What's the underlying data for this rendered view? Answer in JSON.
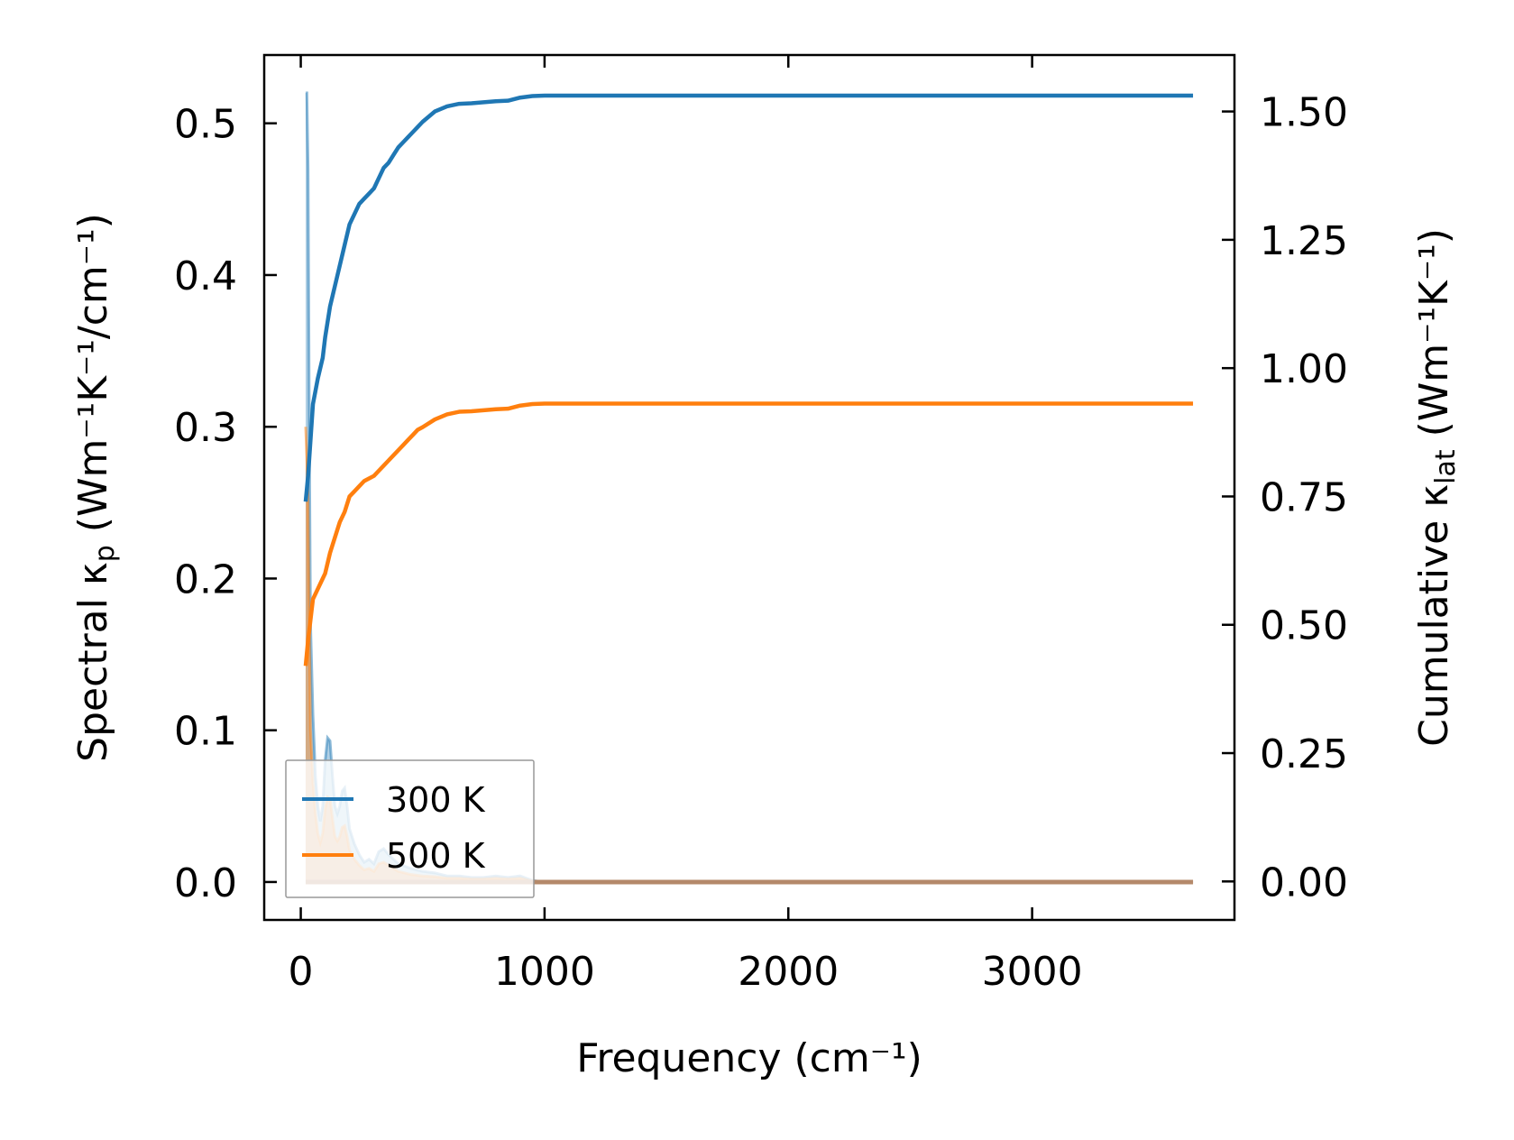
{
  "chart_data": {
    "type": "line",
    "xlabel": "Frequency (cm⁻¹)",
    "ylabel_left": {
      "prefix": "Spectral κ",
      "sub": "p",
      "suffix": " (Wm⁻¹K⁻¹/cm⁻¹)"
    },
    "ylabel_right": {
      "prefix": "Cumulative κ",
      "sub": "lat",
      "suffix": " (Wm⁻¹K⁻¹)"
    },
    "xlim": [
      -150,
      3830
    ],
    "ylim_left": [
      -0.025,
      0.545
    ],
    "ylim_right": [
      -0.075,
      1.61
    ],
    "x_ticks": [
      0,
      1000,
      2000,
      3000
    ],
    "x_tick_labels": [
      "0",
      "1000",
      "2000",
      "3000"
    ],
    "left_ticks": [
      0.0,
      0.1,
      0.2,
      0.3,
      0.4,
      0.5
    ],
    "left_tick_labels": [
      "0.0",
      "0.1",
      "0.2",
      "0.3",
      "0.4",
      "0.5"
    ],
    "right_ticks": [
      0.0,
      0.25,
      0.5,
      0.75,
      1.0,
      1.25,
      1.5
    ],
    "right_tick_labels": [
      "0.00",
      "0.25",
      "0.50",
      "0.75",
      "1.00",
      "1.25",
      "1.50"
    ],
    "legend_position": "lower-left",
    "colors": {
      "300 K": "#1f77b4",
      "500 K": "#ff7f0e"
    },
    "series": [
      {
        "name": "300 K",
        "axis": "right",
        "kind": "cumulative",
        "color": "#1f77b4",
        "x": [
          20,
          30,
          50,
          70,
          90,
          100,
          120,
          140,
          160,
          180,
          200,
          220,
          240,
          260,
          280,
          300,
          320,
          340,
          360,
          380,
          400,
          420,
          440,
          460,
          480,
          500,
          550,
          600,
          650,
          700,
          750,
          800,
          850,
          900,
          950,
          1000,
          1500,
          2000,
          2500,
          3000,
          3500,
          3660
        ],
        "y": [
          0.74,
          0.79,
          0.93,
          0.98,
          1.02,
          1.06,
          1.12,
          1.16,
          1.2,
          1.24,
          1.28,
          1.3,
          1.32,
          1.33,
          1.34,
          1.35,
          1.37,
          1.39,
          1.4,
          1.415,
          1.43,
          1.44,
          1.45,
          1.46,
          1.47,
          1.48,
          1.5,
          1.51,
          1.515,
          1.516,
          1.518,
          1.52,
          1.521,
          1.527,
          1.53,
          1.531,
          1.531,
          1.531,
          1.531,
          1.531,
          1.531,
          1.531
        ]
      },
      {
        "name": "500 K",
        "axis": "right",
        "kind": "cumulative",
        "color": "#ff7f0e",
        "x": [
          20,
          30,
          50,
          70,
          90,
          100,
          120,
          140,
          160,
          180,
          200,
          220,
          240,
          260,
          280,
          300,
          320,
          340,
          360,
          380,
          400,
          420,
          440,
          460,
          480,
          500,
          550,
          600,
          650,
          700,
          750,
          800,
          850,
          900,
          950,
          1000,
          1500,
          2000,
          2500,
          3000,
          3500,
          3660
        ],
        "y": [
          0.42,
          0.47,
          0.55,
          0.57,
          0.59,
          0.6,
          0.64,
          0.67,
          0.7,
          0.72,
          0.75,
          0.76,
          0.77,
          0.78,
          0.785,
          0.79,
          0.8,
          0.81,
          0.82,
          0.83,
          0.84,
          0.85,
          0.86,
          0.87,
          0.88,
          0.885,
          0.9,
          0.91,
          0.915,
          0.916,
          0.918,
          0.92,
          0.921,
          0.927,
          0.93,
          0.931,
          0.931,
          0.931,
          0.931,
          0.931,
          0.931,
          0.931
        ]
      },
      {
        "name": "300 K",
        "axis": "left",
        "kind": "spectral",
        "color": "#1f77b4",
        "x": [
          20,
          25,
          30,
          35,
          40,
          50,
          60,
          70,
          80,
          90,
          100,
          110,
          120,
          130,
          140,
          150,
          160,
          170,
          180,
          190,
          200,
          210,
          220,
          240,
          260,
          280,
          300,
          320,
          340,
          360,
          380,
          400,
          450,
          500,
          550,
          600,
          650,
          700,
          750,
          800,
          850,
          900,
          950,
          1000,
          1500,
          2000,
          2500,
          3000,
          3500,
          3660
        ],
        "y": [
          0.52,
          0.52,
          0.47,
          0.3,
          0.17,
          0.11,
          0.07,
          0.05,
          0.04,
          0.05,
          0.08,
          0.095,
          0.093,
          0.07,
          0.05,
          0.045,
          0.05,
          0.06,
          0.062,
          0.05,
          0.035,
          0.03,
          0.025,
          0.018,
          0.013,
          0.015,
          0.012,
          0.02,
          0.022,
          0.018,
          0.015,
          0.012,
          0.009,
          0.007,
          0.006,
          0.004,
          0.004,
          0.003,
          0.003,
          0.004,
          0.003,
          0.004,
          0.001,
          0.0,
          0.0,
          0.0,
          0.0,
          0.0,
          0.0,
          0.0
        ]
      },
      {
        "name": "500 K",
        "axis": "left",
        "kind": "spectral",
        "color": "#ff7f0e",
        "x": [
          20,
          25,
          30,
          35,
          40,
          50,
          60,
          70,
          80,
          90,
          100,
          110,
          120,
          130,
          140,
          150,
          160,
          170,
          180,
          190,
          200,
          210,
          220,
          240,
          260,
          280,
          300,
          320,
          340,
          360,
          380,
          400,
          450,
          500,
          550,
          600,
          650,
          700,
          750,
          800,
          850,
          900,
          950,
          1000,
          1500,
          2000,
          2500,
          3000,
          3500,
          3660
        ],
        "y": [
          0.3,
          0.28,
          0.25,
          0.17,
          0.1,
          0.065,
          0.045,
          0.032,
          0.026,
          0.032,
          0.048,
          0.056,
          0.055,
          0.042,
          0.03,
          0.027,
          0.03,
          0.036,
          0.037,
          0.03,
          0.021,
          0.018,
          0.015,
          0.011,
          0.008,
          0.009,
          0.007,
          0.012,
          0.013,
          0.011,
          0.009,
          0.007,
          0.005,
          0.004,
          0.0035,
          0.0025,
          0.0025,
          0.002,
          0.002,
          0.0025,
          0.002,
          0.0025,
          0.0006,
          0.0,
          0.0,
          0.0,
          0.0,
          0.0,
          0.0,
          0.0
        ]
      }
    ],
    "legend": [
      {
        "label": "300 K",
        "color": "#1f77b4"
      },
      {
        "label": "500 K",
        "color": "#ff7f0e"
      }
    ]
  }
}
